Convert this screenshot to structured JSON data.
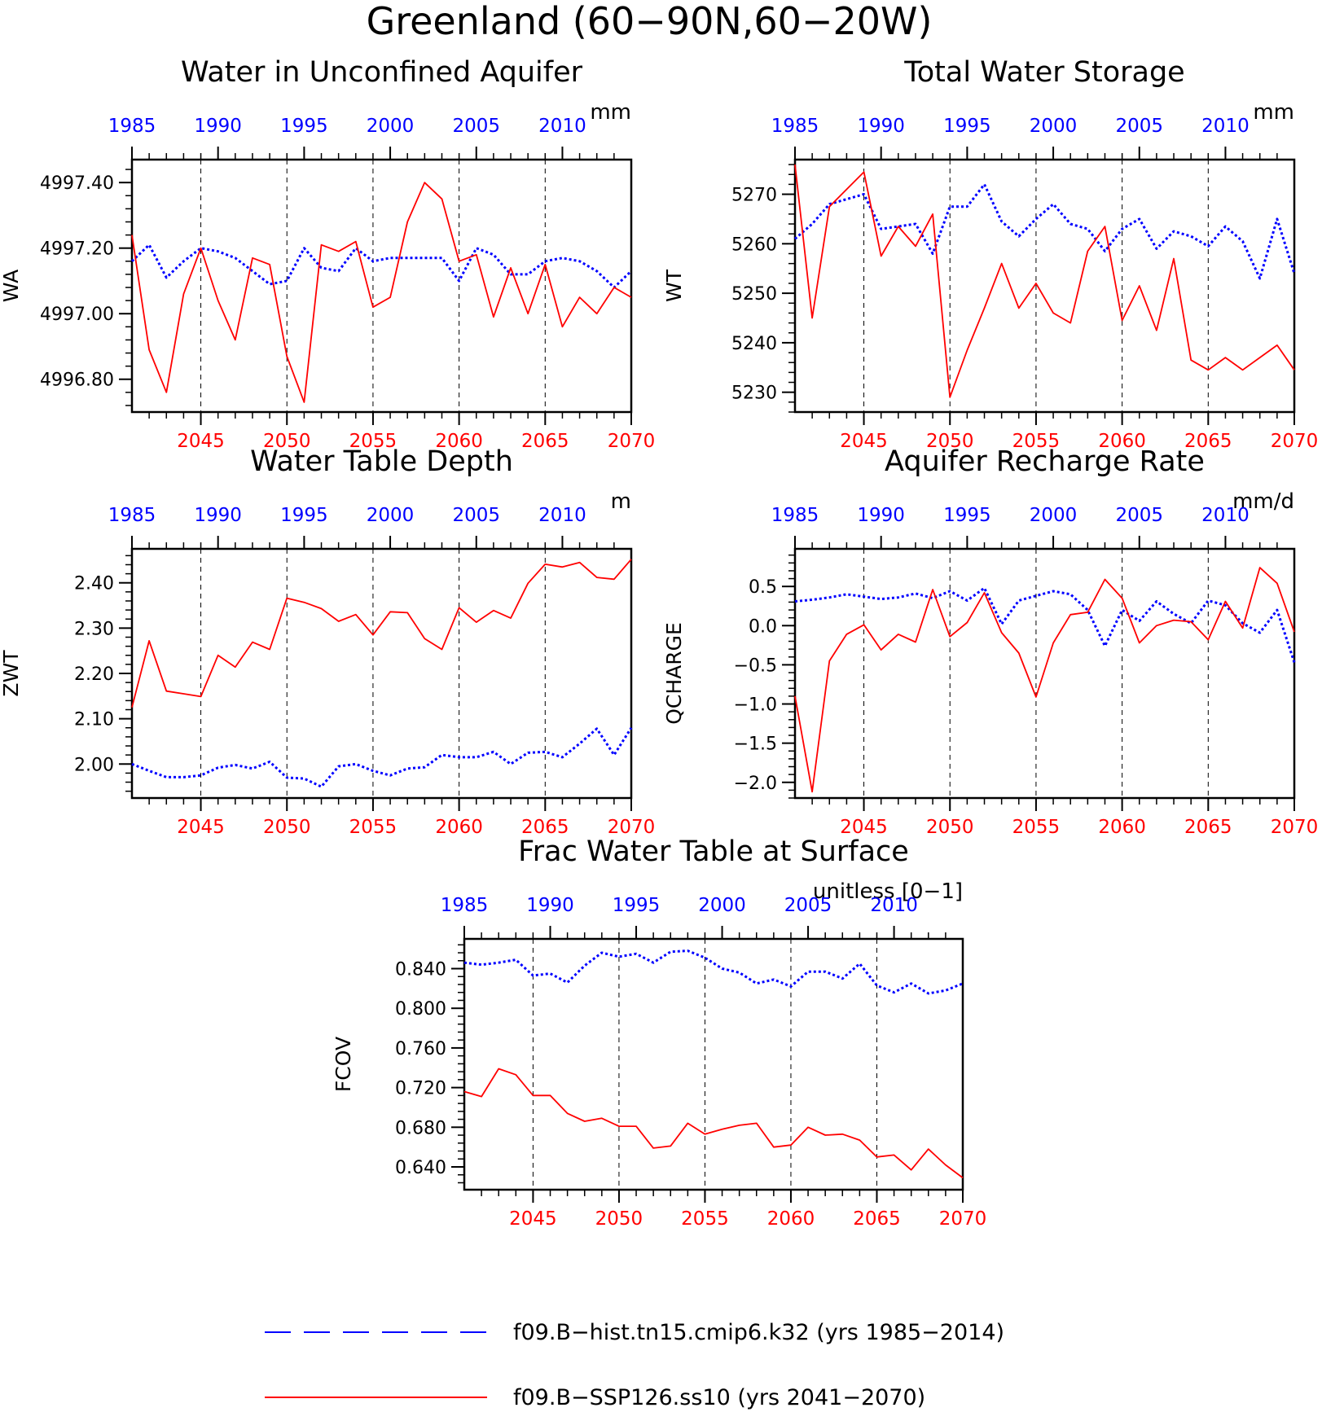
{
  "figure": {
    "title": "Greenland (60−90N,60−20W)"
  },
  "colors": {
    "hist": "#0000ff",
    "ssp": "#ff0000",
    "axis": "#000000",
    "vgrid": "#000000"
  },
  "legend": {
    "placement": "bottom-center",
    "entries": [
      {
        "key": "hist",
        "label": "f09.B−hist.tn15.cmip6.k32 (yrs 1985−2014)",
        "style": "dashed"
      },
      {
        "key": "ssp",
        "label": "f09.B−SSP126.ss10 (yrs 2041−2070)",
        "style": "solid"
      }
    ]
  },
  "chart_data": [
    {
      "id": "wa",
      "type": "line",
      "title": "Water in Unconfined Aquifer",
      "units": "mm",
      "ylabel": "WA",
      "ylim": [
        4996.7,
        4997.47
      ],
      "yticks": [
        4996.8,
        4997.0,
        4997.2,
        4997.4
      ],
      "ytick_labels": [
        "4996.80",
        "4997.00",
        "4997.20",
        "4997.40"
      ],
      "x_bottom": {
        "range": [
          2041,
          2070
        ],
        "ticks": [
          2045,
          2050,
          2055,
          2060,
          2065,
          2070
        ]
      },
      "x_top": {
        "range": [
          1985,
          2014
        ],
        "ticks": [
          1985,
          1990,
          1995,
          2000,
          2005,
          2010
        ]
      },
      "vgrid": [
        2045,
        2050,
        2055,
        2060,
        2065
      ],
      "series": [
        {
          "key": "hist",
          "x_axis": "top",
          "x_start": 1985,
          "values": [
            4997.16,
            4997.21,
            4997.11,
            4997.16,
            4997.2,
            4997.19,
            4997.17,
            4997.13,
            4997.09,
            4997.1,
            4997.2,
            4997.14,
            4997.13,
            4997.2,
            4997.16,
            4997.17,
            4997.17,
            4997.17,
            4997.17,
            4997.1,
            4997.2,
            4997.18,
            4997.12,
            4997.12,
            4997.16,
            4997.17,
            4997.16,
            4997.13,
            4997.08,
            4997.13
          ]
        },
        {
          "key": "ssp",
          "x_axis": "bottom",
          "x_start": 2041,
          "values": [
            4997.24,
            4996.89,
            4996.76,
            4997.06,
            4997.2,
            4997.04,
            4996.92,
            4997.17,
            4997.15,
            4996.87,
            4996.73,
            4997.21,
            4997.19,
            4997.22,
            4997.02,
            4997.05,
            4997.28,
            4997.4,
            4997.35,
            4997.16,
            4997.18,
            4996.99,
            4997.14,
            4997.0,
            4997.15,
            4996.96,
            4997.05,
            4997.0,
            4997.08,
            4997.05
          ]
        }
      ]
    },
    {
      "id": "wt",
      "type": "line",
      "title": "Total Water Storage",
      "units": "mm",
      "ylabel": "WT",
      "ylim": [
        5226,
        5277
      ],
      "yticks": [
        5230,
        5240,
        5250,
        5260,
        5270
      ],
      "ytick_labels": [
        "5230",
        "5240",
        "5250",
        "5260",
        "5270"
      ],
      "x_bottom": {
        "range": [
          2041,
          2070
        ],
        "ticks": [
          2045,
          2050,
          2055,
          2060,
          2065,
          2070
        ]
      },
      "x_top": {
        "range": [
          1985,
          2014
        ],
        "ticks": [
          1985,
          1990,
          1995,
          2000,
          2005,
          2010
        ]
      },
      "vgrid": [
        2045,
        2050,
        2055,
        2060,
        2065
      ],
      "series": [
        {
          "key": "hist",
          "x_axis": "top",
          "x_start": 1985,
          "values": [
            5261,
            5264,
            5268,
            5269,
            5270,
            5263,
            5263.5,
            5264,
            5258,
            5267.5,
            5267.5,
            5272,
            5264.5,
            5261.5,
            5265,
            5268,
            5264,
            5263,
            5258.5,
            5263,
            5265,
            5259,
            5262.5,
            5261.5,
            5259.5,
            5263.5,
            5260.5,
            5253,
            5265,
            5254
          ]
        },
        {
          "key": "ssp",
          "x_axis": "bottom",
          "x_start": 2041,
          "values": [
            5276,
            5245,
            5267.5,
            5271,
            5274.5,
            5257.5,
            5263.5,
            5259.5,
            5266,
            5229,
            5238.5,
            5247,
            5256,
            5247,
            5252,
            5246,
            5244,
            5258.5,
            5263.5,
            5244.5,
            5251.5,
            5242.5,
            5257,
            5236.5,
            5234.5,
            5237,
            5234.5,
            5237,
            5239.5,
            5234.5
          ]
        }
      ]
    },
    {
      "id": "zwt",
      "type": "line",
      "title": "Water Table Depth",
      "units": "m",
      "ylabel": "ZWT",
      "ylim": [
        1.925,
        2.475
      ],
      "yticks": [
        2.0,
        2.1,
        2.2,
        2.3,
        2.4
      ],
      "ytick_labels": [
        "2.00",
        "2.10",
        "2.20",
        "2.30",
        "2.40"
      ],
      "x_bottom": {
        "range": [
          2041,
          2070
        ],
        "ticks": [
          2045,
          2050,
          2055,
          2060,
          2065,
          2070
        ]
      },
      "x_top": {
        "range": [
          1985,
          2014
        ],
        "ticks": [
          1985,
          1990,
          1995,
          2000,
          2005,
          2010
        ]
      },
      "vgrid": [
        2045,
        2050,
        2055,
        2060,
        2065
      ],
      "series": [
        {
          "key": "hist",
          "x_axis": "top",
          "x_start": 1985,
          "values": [
            2.0,
            1.985,
            1.971,
            1.971,
            1.975,
            1.992,
            1.998,
            1.99,
            2.005,
            1.97,
            1.968,
            1.95,
            1.995,
            2.0,
            1.985,
            1.975,
            1.99,
            1.993,
            2.02,
            2.015,
            2.015,
            2.027,
            2.0,
            2.025,
            2.027,
            2.015,
            2.045,
            2.078,
            2.02,
            2.08
          ]
        },
        {
          "key": "ssp",
          "x_axis": "bottom",
          "x_start": 2041,
          "values": [
            2.125,
            2.272,
            2.161,
            2.155,
            2.149,
            2.24,
            2.214,
            2.269,
            2.253,
            2.366,
            2.357,
            2.343,
            2.315,
            2.33,
            2.285,
            2.336,
            2.334,
            2.277,
            2.253,
            2.345,
            2.313,
            2.339,
            2.322,
            2.399,
            2.441,
            2.435,
            2.445,
            2.412,
            2.408,
            2.452
          ]
        }
      ]
    },
    {
      "id": "qcharge",
      "type": "line",
      "title": "Aquifer Recharge Rate",
      "units": "mm/d",
      "ylabel": "QCHARGE",
      "ylim": [
        -2.2,
        0.98
      ],
      "yticks": [
        -2.0,
        -1.5,
        -1.0,
        -0.5,
        0.0,
        0.5
      ],
      "ytick_labels": [
        "−2.0",
        "−1.5",
        "−1.0",
        "−0.5",
        "0.0",
        "0.5"
      ],
      "x_bottom": {
        "range": [
          2041,
          2070
        ],
        "ticks": [
          2045,
          2050,
          2055,
          2060,
          2065,
          2070
        ]
      },
      "x_top": {
        "range": [
          1985,
          2014
        ],
        "ticks": [
          1985,
          1990,
          1995,
          2000,
          2005,
          2010
        ]
      },
      "vgrid": [
        2045,
        2050,
        2055,
        2060,
        2065
      ],
      "series": [
        {
          "key": "hist",
          "x_axis": "top",
          "x_start": 1985,
          "values": [
            0.31,
            0.33,
            0.36,
            0.4,
            0.37,
            0.34,
            0.36,
            0.41,
            0.35,
            0.44,
            0.32,
            0.48,
            0.02,
            0.32,
            0.38,
            0.44,
            0.4,
            0.2,
            -0.26,
            0.2,
            0.06,
            0.31,
            0.15,
            0.03,
            0.32,
            0.26,
            0.03,
            -0.09,
            0.2,
            -0.47
          ]
        },
        {
          "key": "ssp",
          "x_axis": "bottom",
          "x_start": 2041,
          "values": [
            -0.9,
            -2.12,
            -0.45,
            -0.11,
            0.01,
            -0.31,
            -0.11,
            -0.21,
            0.46,
            -0.14,
            0.04,
            0.42,
            -0.09,
            -0.35,
            -0.91,
            -0.22,
            0.14,
            0.17,
            0.59,
            0.35,
            -0.22,
            0.0,
            0.07,
            0.05,
            -0.18,
            0.31,
            -0.03,
            0.74,
            0.54,
            -0.08
          ]
        }
      ]
    },
    {
      "id": "fcov",
      "type": "line",
      "title": "Frac Water Table at Surface",
      "units": "unitless [0−1]",
      "ylabel": "FCOV",
      "ylim": [
        0.617,
        0.87
      ],
      "yticks": [
        0.64,
        0.68,
        0.72,
        0.76,
        0.8,
        0.84
      ],
      "ytick_labels": [
        "0.640",
        "0.680",
        "0.720",
        "0.760",
        "0.800",
        "0.840"
      ],
      "x_bottom": {
        "range": [
          2041,
          2070
        ],
        "ticks": [
          2045,
          2050,
          2055,
          2060,
          2065,
          2070
        ]
      },
      "x_top": {
        "range": [
          1985,
          2014
        ],
        "ticks": [
          1985,
          1990,
          1995,
          2000,
          2005,
          2010
        ]
      },
      "vgrid": [
        2045,
        2050,
        2055,
        2060,
        2065
      ],
      "series": [
        {
          "key": "hist",
          "x_axis": "top",
          "x_start": 1985,
          "values": [
            0.846,
            0.844,
            0.846,
            0.849,
            0.833,
            0.835,
            0.826,
            0.843,
            0.856,
            0.852,
            0.855,
            0.846,
            0.857,
            0.858,
            0.851,
            0.84,
            0.836,
            0.825,
            0.829,
            0.822,
            0.837,
            0.837,
            0.83,
            0.845,
            0.823,
            0.816,
            0.825,
            0.815,
            0.818,
            0.825
          ]
        },
        {
          "key": "ssp",
          "x_axis": "bottom",
          "x_start": 2041,
          "values": [
            0.716,
            0.711,
            0.739,
            0.733,
            0.712,
            0.712,
            0.694,
            0.686,
            0.689,
            0.681,
            0.681,
            0.659,
            0.661,
            0.684,
            0.673,
            0.678,
            0.682,
            0.684,
            0.66,
            0.662,
            0.68,
            0.672,
            0.673,
            0.667,
            0.65,
            0.652,
            0.637,
            0.658,
            0.642,
            0.629
          ]
        }
      ]
    }
  ]
}
